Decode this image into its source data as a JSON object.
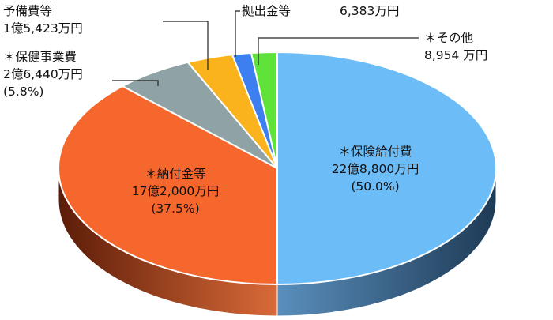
{
  "chart_data": {
    "type": "pie",
    "style": "3d",
    "title": "",
    "slices": [
      {
        "label": "＊保険給付費",
        "amount": "22億8,800万円",
        "percent_text": "(50.0%)",
        "value": 50.0,
        "color": "#6bbcf7"
      },
      {
        "label": "＊納付金等",
        "amount": "17億2,000万円",
        "percent_text": "(37.5%)",
        "value": 37.5,
        "color": "#f5672d"
      },
      {
        "label": "＊保健事業費",
        "amount": "2億6,440万円",
        "percent_text": "(5.8%)",
        "value": 5.8,
        "color": "#8fa2a5"
      },
      {
        "label": "予備費等",
        "amount": "1億5,423万円",
        "percent_text": "(3.4%)",
        "value": 3.4,
        "color": "#fbb31d"
      },
      {
        "label": "拠出金等",
        "amount": "6,383万円",
        "percent_text": "(1.4%)",
        "value": 1.4,
        "color": "#3d7ef0"
      },
      {
        "label": "＊その他",
        "amount": "8,954 万円",
        "percent_text": "(1.9%)",
        "value": 1.9,
        "color": "#5fe33a"
      }
    ]
  }
}
